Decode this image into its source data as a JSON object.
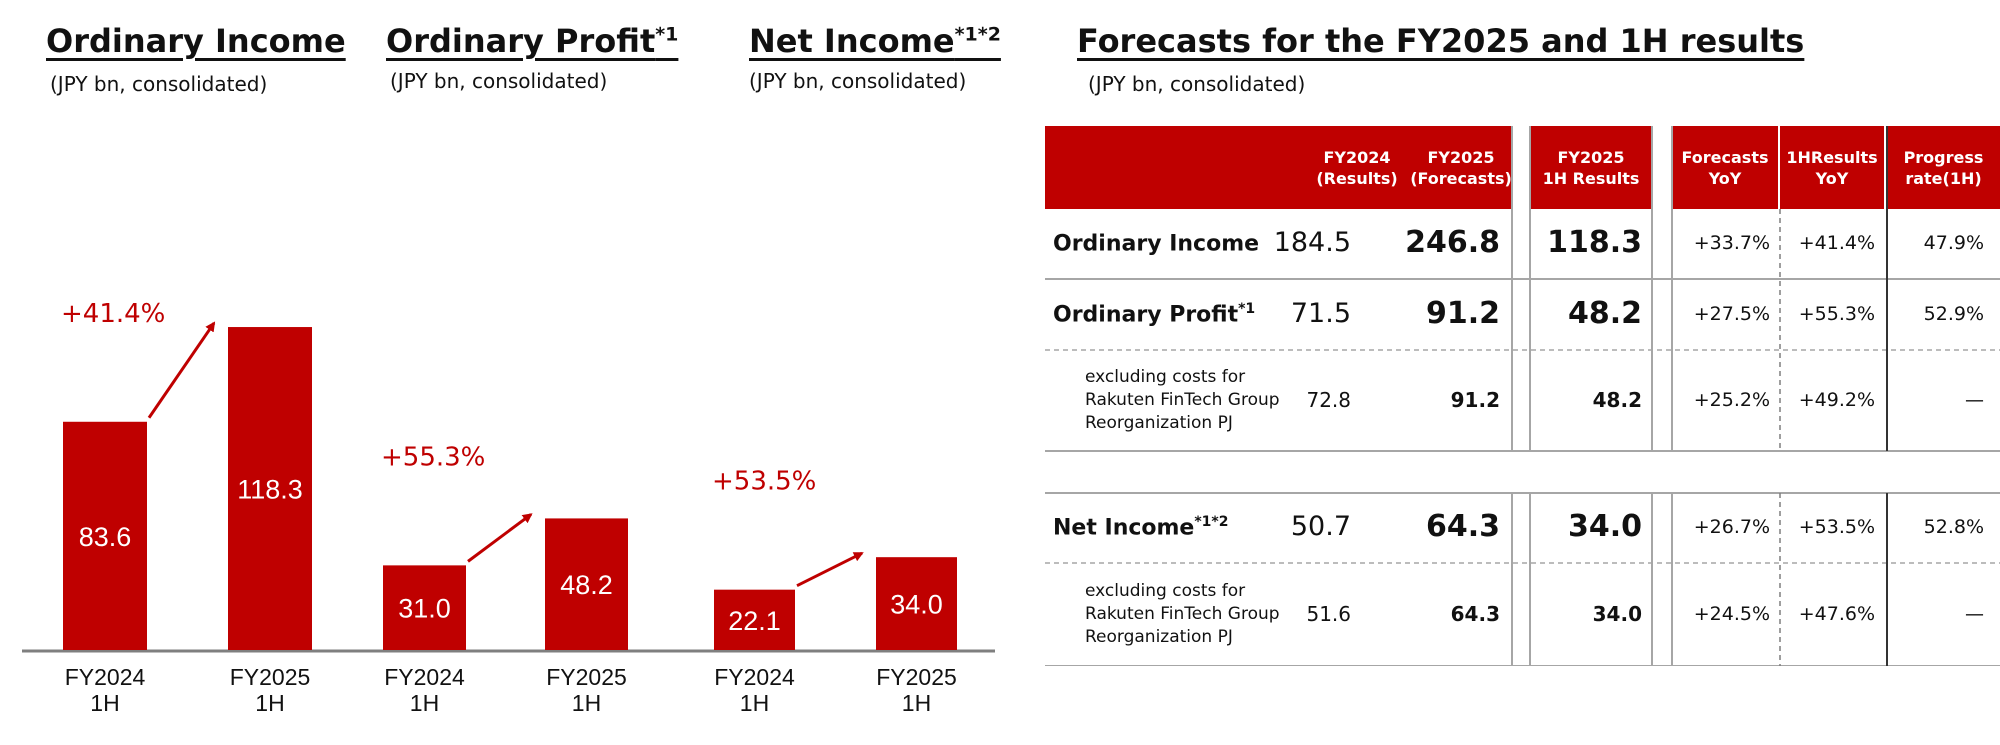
{
  "charts": [
    {
      "title": "Ordinary Income",
      "title_sup": "",
      "unit": "(JPY bn, consolidated)",
      "categories": [
        [
          "FY2024",
          "1H"
        ],
        [
          "FY2025",
          "1H"
        ]
      ],
      "values": [
        83.6,
        118.3
      ],
      "value_labels": [
        "83.6",
        "118.3"
      ],
      "growth_label": "+41.4%"
    },
    {
      "title": "Ordinary Profit",
      "title_sup": "*1",
      "unit": "(JPY bn, consolidated)",
      "categories": [
        [
          "FY2024",
          "1H"
        ],
        [
          "FY2025",
          "1H"
        ]
      ],
      "values": [
        31.0,
        48.2
      ],
      "value_labels": [
        "31.0",
        "48.2"
      ],
      "growth_label": "+55.3%"
    },
    {
      "title": "Net Income",
      "title_sup": "*1*2",
      "unit": "(JPY bn, consolidated)",
      "categories": [
        [
          "FY2024",
          "1H"
        ],
        [
          "FY2025",
          "1H"
        ]
      ],
      "values": [
        22.1,
        34.0
      ],
      "value_labels": [
        "22.1",
        "34.0"
      ],
      "growth_label": "+53.5%"
    }
  ],
  "chart_data": [
    {
      "type": "bar",
      "title": "Ordinary Income",
      "subtitle": "(JPY bn, consolidated)",
      "categories": [
        "FY2024 1H",
        "FY2025 1H"
      ],
      "values": [
        83.6,
        118.3
      ],
      "annotation": "+41.4%"
    },
    {
      "type": "bar",
      "title": "Ordinary Profit*1",
      "subtitle": "(JPY bn, consolidated)",
      "categories": [
        "FY2024 1H",
        "FY2025 1H"
      ],
      "values": [
        31.0,
        48.2
      ],
      "annotation": "+55.3%"
    },
    {
      "type": "bar",
      "title": "Net Income*1*2",
      "subtitle": "(JPY bn, consolidated)",
      "categories": [
        "FY2024 1H",
        "FY2025 1H"
      ],
      "values": [
        22.1,
        34.0
      ],
      "annotation": "+53.5%"
    }
  ],
  "forecast": {
    "title": "Forecasts for the FY2025 and 1H results",
    "unit": "(JPY bn, consolidated)",
    "headers": {
      "fy2024": "FY2024\n(Results)",
      "fy2025": "FY2025\n(Forecasts)",
      "h1": "FY2025\n1H Results",
      "fc_yoy": "Forecasts\nYoY",
      "h1_yoy": "1HResults\nYoY",
      "progress": "Progress\nrate(1H)"
    },
    "rows": {
      "oi": {
        "label": "Ordinary Income",
        "sup": "",
        "fy2024": "184.5",
        "fy2025": "246.8",
        "h1": "118.3",
        "fc_yoy": "+33.7%",
        "h1_yoy": "+41.4%",
        "progress": "47.9%"
      },
      "op": {
        "label": "Ordinary Profit",
        "sup": "*1",
        "fy2024": "71.5",
        "fy2025": "91.2",
        "h1": "48.2",
        "fc_yoy": "+27.5%",
        "h1_yoy": "+55.3%",
        "progress": "52.9%"
      },
      "op_ex": {
        "label": "excluding costs for\nRakuten FinTech Group\nReorganization PJ",
        "fy2024": "72.8",
        "fy2025": "91.2",
        "h1": "48.2",
        "fc_yoy": "+25.2%",
        "h1_yoy": "+49.2%",
        "progress": "—"
      },
      "ni": {
        "label": "Net Income",
        "sup": "*1*2",
        "fy2024": "50.7",
        "fy2025": "64.3",
        "h1": "34.0",
        "fc_yoy": "+26.7%",
        "h1_yoy": "+53.5%",
        "progress": "52.8%"
      },
      "ni_ex": {
        "label": "excluding costs for\nRakuten FinTech Group\nReorganization PJ",
        "fy2024": "51.6",
        "fy2025": "64.3",
        "h1": "34.0",
        "fc_yoy": "+24.5%",
        "h1_yoy": "+47.6%",
        "progress": "—"
      }
    }
  },
  "colors": {
    "accent": "#bf0000",
    "axis": "#7f7f7f",
    "line": "#a6a6a6"
  }
}
